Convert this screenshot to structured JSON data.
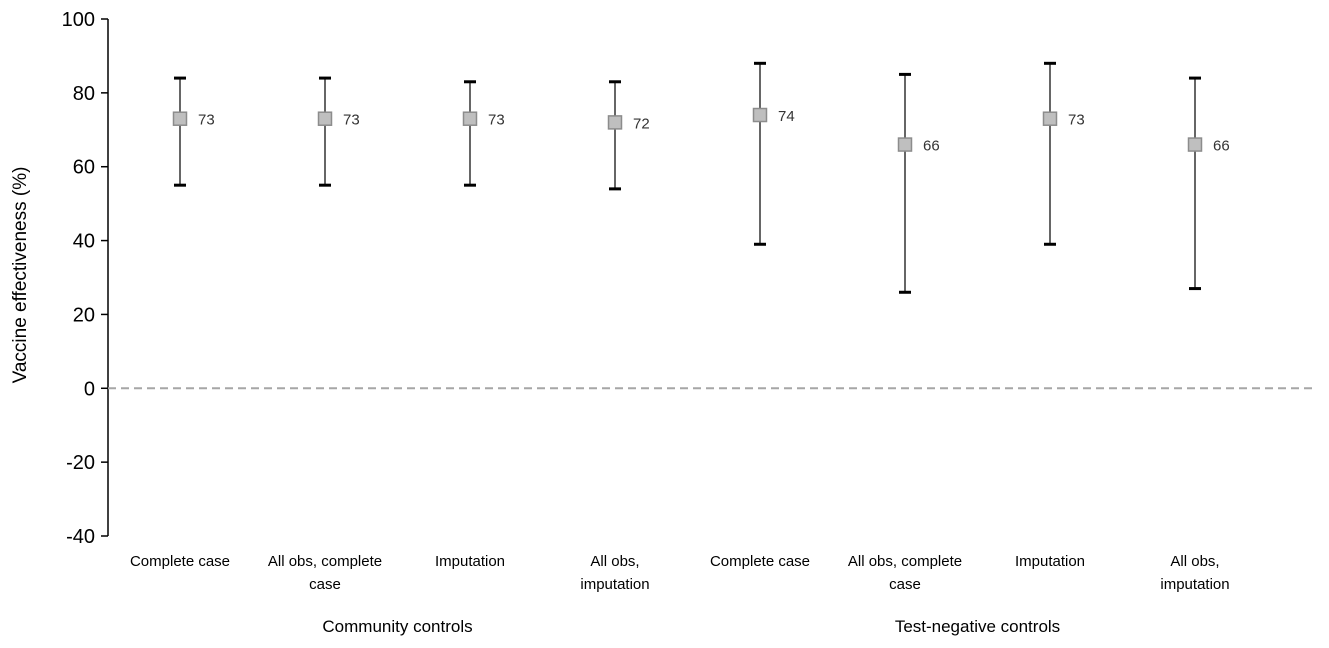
{
  "chart_data": {
    "type": "scatter",
    "ylabel": "Vaccine effectiveness (%)",
    "ylim": [
      -40,
      100
    ],
    "yticks": [
      100,
      80,
      60,
      40,
      20,
      0,
      -20,
      -40
    ],
    "reference_line": {
      "y": 0,
      "style": "dashed"
    },
    "grid": false,
    "legend": "none",
    "groups": [
      {
        "name": "Community controls",
        "categories": [
          0,
          1,
          2,
          3
        ]
      },
      {
        "name": "Test-negative controls",
        "categories": [
          4,
          5,
          6,
          7
        ]
      }
    ],
    "categories": [
      [
        "Complete case"
      ],
      [
        "All obs, complete",
        "case"
      ],
      [
        "Imputation"
      ],
      [
        "All obs,",
        "imputation"
      ],
      [
        "Complete case"
      ],
      [
        "All obs, complete",
        "case"
      ],
      [
        "Imputation"
      ],
      [
        "All obs,",
        "imputation"
      ]
    ],
    "points": [
      {
        "estimate": 73,
        "lower": 55,
        "upper": 84,
        "label": "73"
      },
      {
        "estimate": 73,
        "lower": 55,
        "upper": 84,
        "label": "73"
      },
      {
        "estimate": 73,
        "lower": 55,
        "upper": 83,
        "label": "73"
      },
      {
        "estimate": 72,
        "lower": 54,
        "upper": 83,
        "label": "72"
      },
      {
        "estimate": 74,
        "lower": 39,
        "upper": 88,
        "label": "74"
      },
      {
        "estimate": 66,
        "lower": 26,
        "upper": 85,
        "label": "66"
      },
      {
        "estimate": 73,
        "lower": 39,
        "upper": 88,
        "label": "73"
      },
      {
        "estimate": 66,
        "lower": 27,
        "upper": 84,
        "label": "66"
      }
    ],
    "colors": {
      "marker_fill": "#bfbfbf",
      "marker_stroke": "#8c8c8c",
      "error_bar": "#000000",
      "axis": "#000000",
      "reference_line": "#a6a6a6"
    }
  }
}
